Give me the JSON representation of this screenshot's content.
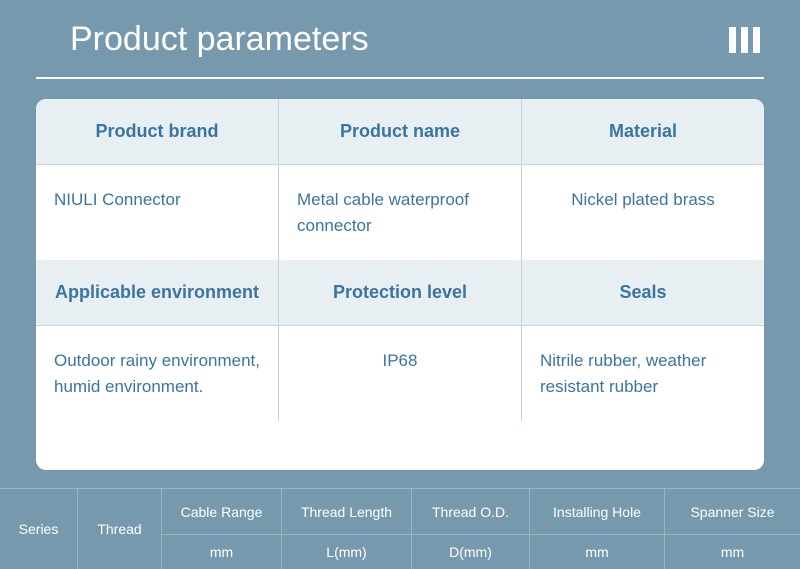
{
  "colors": {
    "background": "#7699ad",
    "panel_bg": "#ffffff",
    "cell_header_bg": "#e8eff3",
    "text_accent": "#3975a0",
    "border": "#c5d4dd",
    "spec_border": "#9db5c3"
  },
  "header": {
    "title": "Product parameters"
  },
  "info_grid": {
    "row1": [
      {
        "label": "Product brand",
        "value": "NIULI  Connector",
        "align": "left"
      },
      {
        "label": "Product name",
        "value": "Metal cable waterproof connector",
        "align": "left"
      },
      {
        "label": "Material",
        "value": "Nickel plated brass",
        "align": "center"
      }
    ],
    "row2": [
      {
        "label": "Applicable environment",
        "value": "Outdoor rainy  environment, humid  environment.",
        "align": "left"
      },
      {
        "label": "Protection level",
        "value": "IP68",
        "align": "center"
      },
      {
        "label": "Seals",
        "value": "Nitrile rubber, weather resistant rubber",
        "align": "left"
      }
    ]
  },
  "spec_table": {
    "columns": [
      {
        "header": "Series",
        "unit": ""
      },
      {
        "header": "Thread",
        "unit": ""
      },
      {
        "header": "Cable Range",
        "unit": "mm"
      },
      {
        "header": "Thread Length",
        "unit": "L(mm)"
      },
      {
        "header": "Thread O.D.",
        "unit": "D(mm)"
      },
      {
        "header": "Installing Hole",
        "unit": "mm"
      },
      {
        "header": "Spanner Size",
        "unit": "mm"
      }
    ]
  }
}
